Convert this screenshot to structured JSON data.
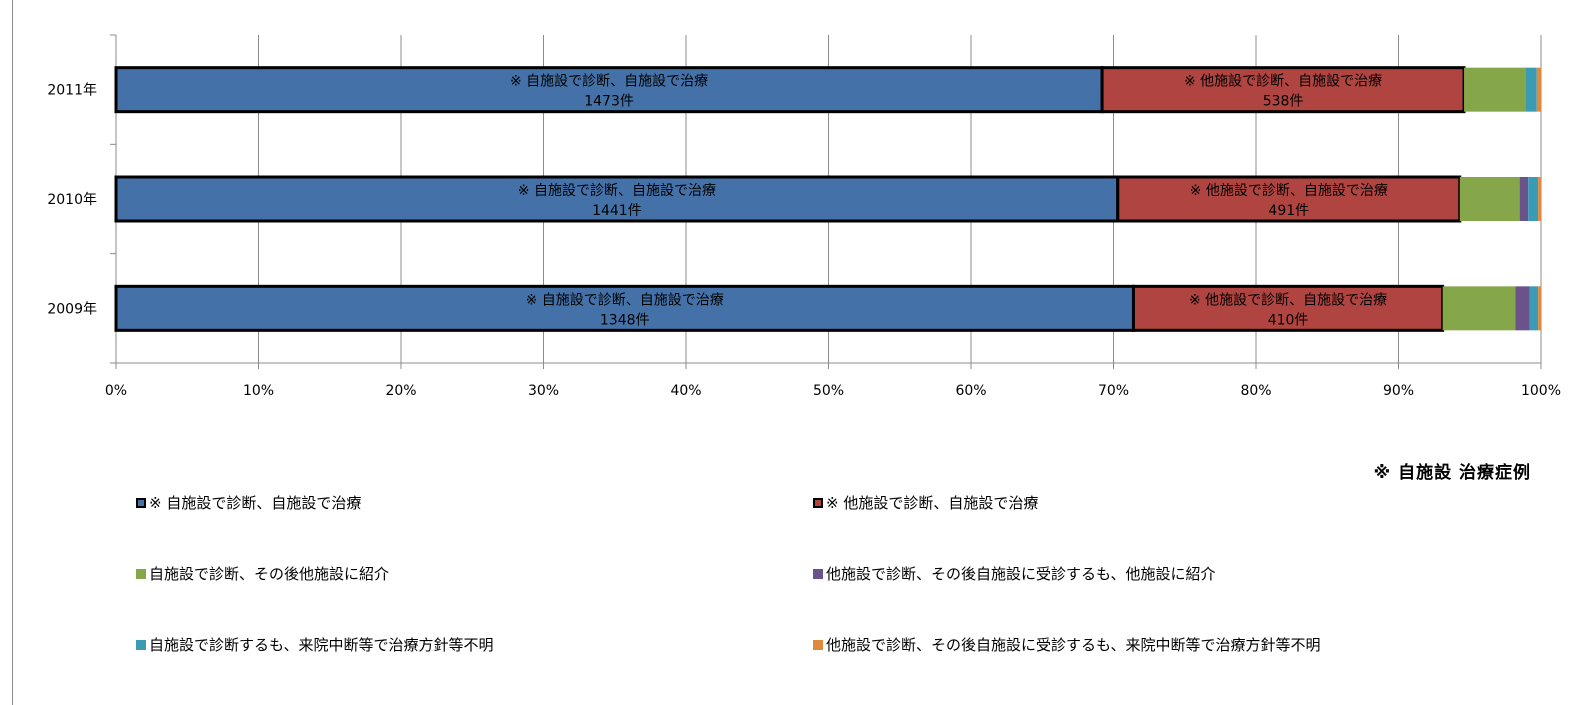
{
  "chart_data": {
    "type": "bar",
    "orientation": "horizontal",
    "stacked": "percent",
    "categories": [
      "2011年",
      "2010年",
      "2009年"
    ],
    "series": [
      {
        "name": "※ 自施設で診断、自施設で治療",
        "color": "#4472a8",
        "outlined": true,
        "values": [
          69.2,
          70.3,
          71.4
        ],
        "labels": [
          [
            "※ 自施設で診断、自施設で治療",
            "1473件"
          ],
          [
            "※ 自施設で診断、自施設で治療",
            "1441件"
          ],
          [
            "※ 自施設で診断、自施設で治療",
            "1348件"
          ]
        ]
      },
      {
        "name": "※ 他施設で診断、自施設で治療",
        "color": "#b04440",
        "outlined": true,
        "values": [
          25.4,
          24.0,
          21.7
        ],
        "labels": [
          [
            "※ 他施設で診断、自施設で治療",
            "538件"
          ],
          [
            "※ 他施設で診断、自施設で治療",
            "491件"
          ],
          [
            "※ 他施設で診断、自施設で治療",
            "410件"
          ]
        ]
      },
      {
        "name": "自施設で診断、その後他施設に紹介",
        "color": "#86a64a",
        "outlined": false,
        "values": [
          4.3,
          4.2,
          5.1
        ]
      },
      {
        "name": "他施設で診断、その後自施設に受診するも、他施設に紹介",
        "color": "#6a528a",
        "outlined": false,
        "values": [
          0.0,
          0.6,
          1.0
        ]
      },
      {
        "name": "自施設で診断するも、来院中断等で治療方針等不明",
        "color": "#3b9bb5",
        "outlined": false,
        "values": [
          0.8,
          0.7,
          0.6
        ]
      },
      {
        "name": "他施設で診断、その後自施設に受診するも、来院中断等で治療方針等不明",
        "color": "#e0883c",
        "outlined": false,
        "values": [
          0.3,
          0.2,
          0.2
        ]
      }
    ],
    "xlim": [
      0,
      100
    ],
    "xticks": [
      "0%",
      "10%",
      "20%",
      "30%",
      "40%",
      "50%",
      "60%",
      "70%",
      "80%",
      "90%",
      "100%"
    ],
    "grid": true,
    "legend_position": "bottom"
  },
  "note": "※ 自施設 治療症例"
}
